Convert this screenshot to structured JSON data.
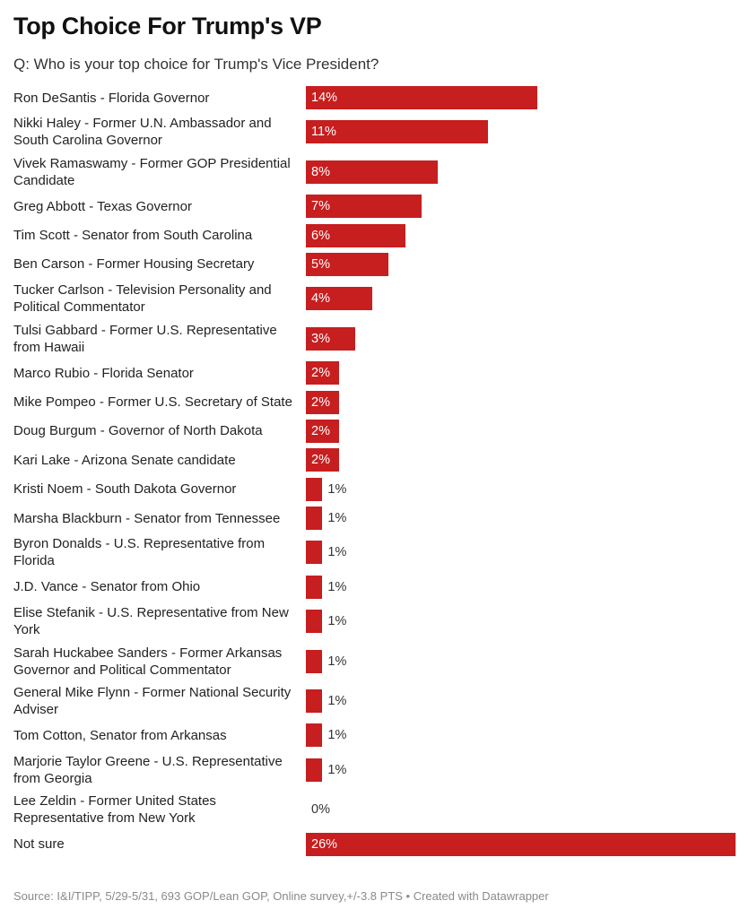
{
  "chart_data": {
    "type": "bar",
    "orientation": "horizontal",
    "title": "Top Choice For Trump's VP",
    "subtitle": "Q: Who is your top choice for Trump's Vice President?",
    "categories": [
      "Ron DeSantis - Florida Governor",
      "Nikki Haley - Former U.N. Ambassador and South Carolina Governor",
      "Vivek Ramaswamy - Former GOP Presidential Candidate",
      "Greg Abbott - Texas Governor",
      "Tim Scott - Senator from South Carolina",
      "Ben Carson - Former Housing Secretary",
      "Tucker Carlson - Television Personality and Political Commentator",
      "Tulsi Gabbard - Former U.S. Representative from Hawaii",
      "Marco Rubio - Florida Senator",
      "Mike Pompeo - Former U.S. Secretary of State",
      "Doug Burgum - Governor of North Dakota",
      "Kari Lake - Arizona Senate candidate",
      "Kristi Noem - South Dakota Governor",
      "Marsha Blackburn - Senator from Tennessee",
      "Byron Donalds - U.S. Representative from Florida",
      "J.D. Vance - Senator from Ohio",
      "Elise Stefanik - U.S. Representative from New York",
      "Sarah Huckabee Sanders - Former Arkansas Governor and Political Commentator",
      "General Mike Flynn - Former National Security Adviser",
      "Tom Cotton, Senator from Arkansas",
      "Marjorie Taylor Greene - U.S. Representative from Georgia",
      "Lee Zeldin - Former United States Representative from New York",
      "Not sure"
    ],
    "values": [
      14,
      11,
      8,
      7,
      6,
      5,
      4,
      3,
      2,
      2,
      2,
      2,
      1,
      1,
      1,
      1,
      1,
      1,
      1,
      1,
      1,
      0,
      26
    ],
    "value_suffix": "%",
    "xlim": [
      0,
      26
    ],
    "bar_color": "#c71e1f",
    "grid": false,
    "source": "Source: I&I/TIPP, 5/29-5/31, 693 GOP/Lean GOP, Online survey,+/-3.8 PTS • Created with Datawrapper"
  }
}
